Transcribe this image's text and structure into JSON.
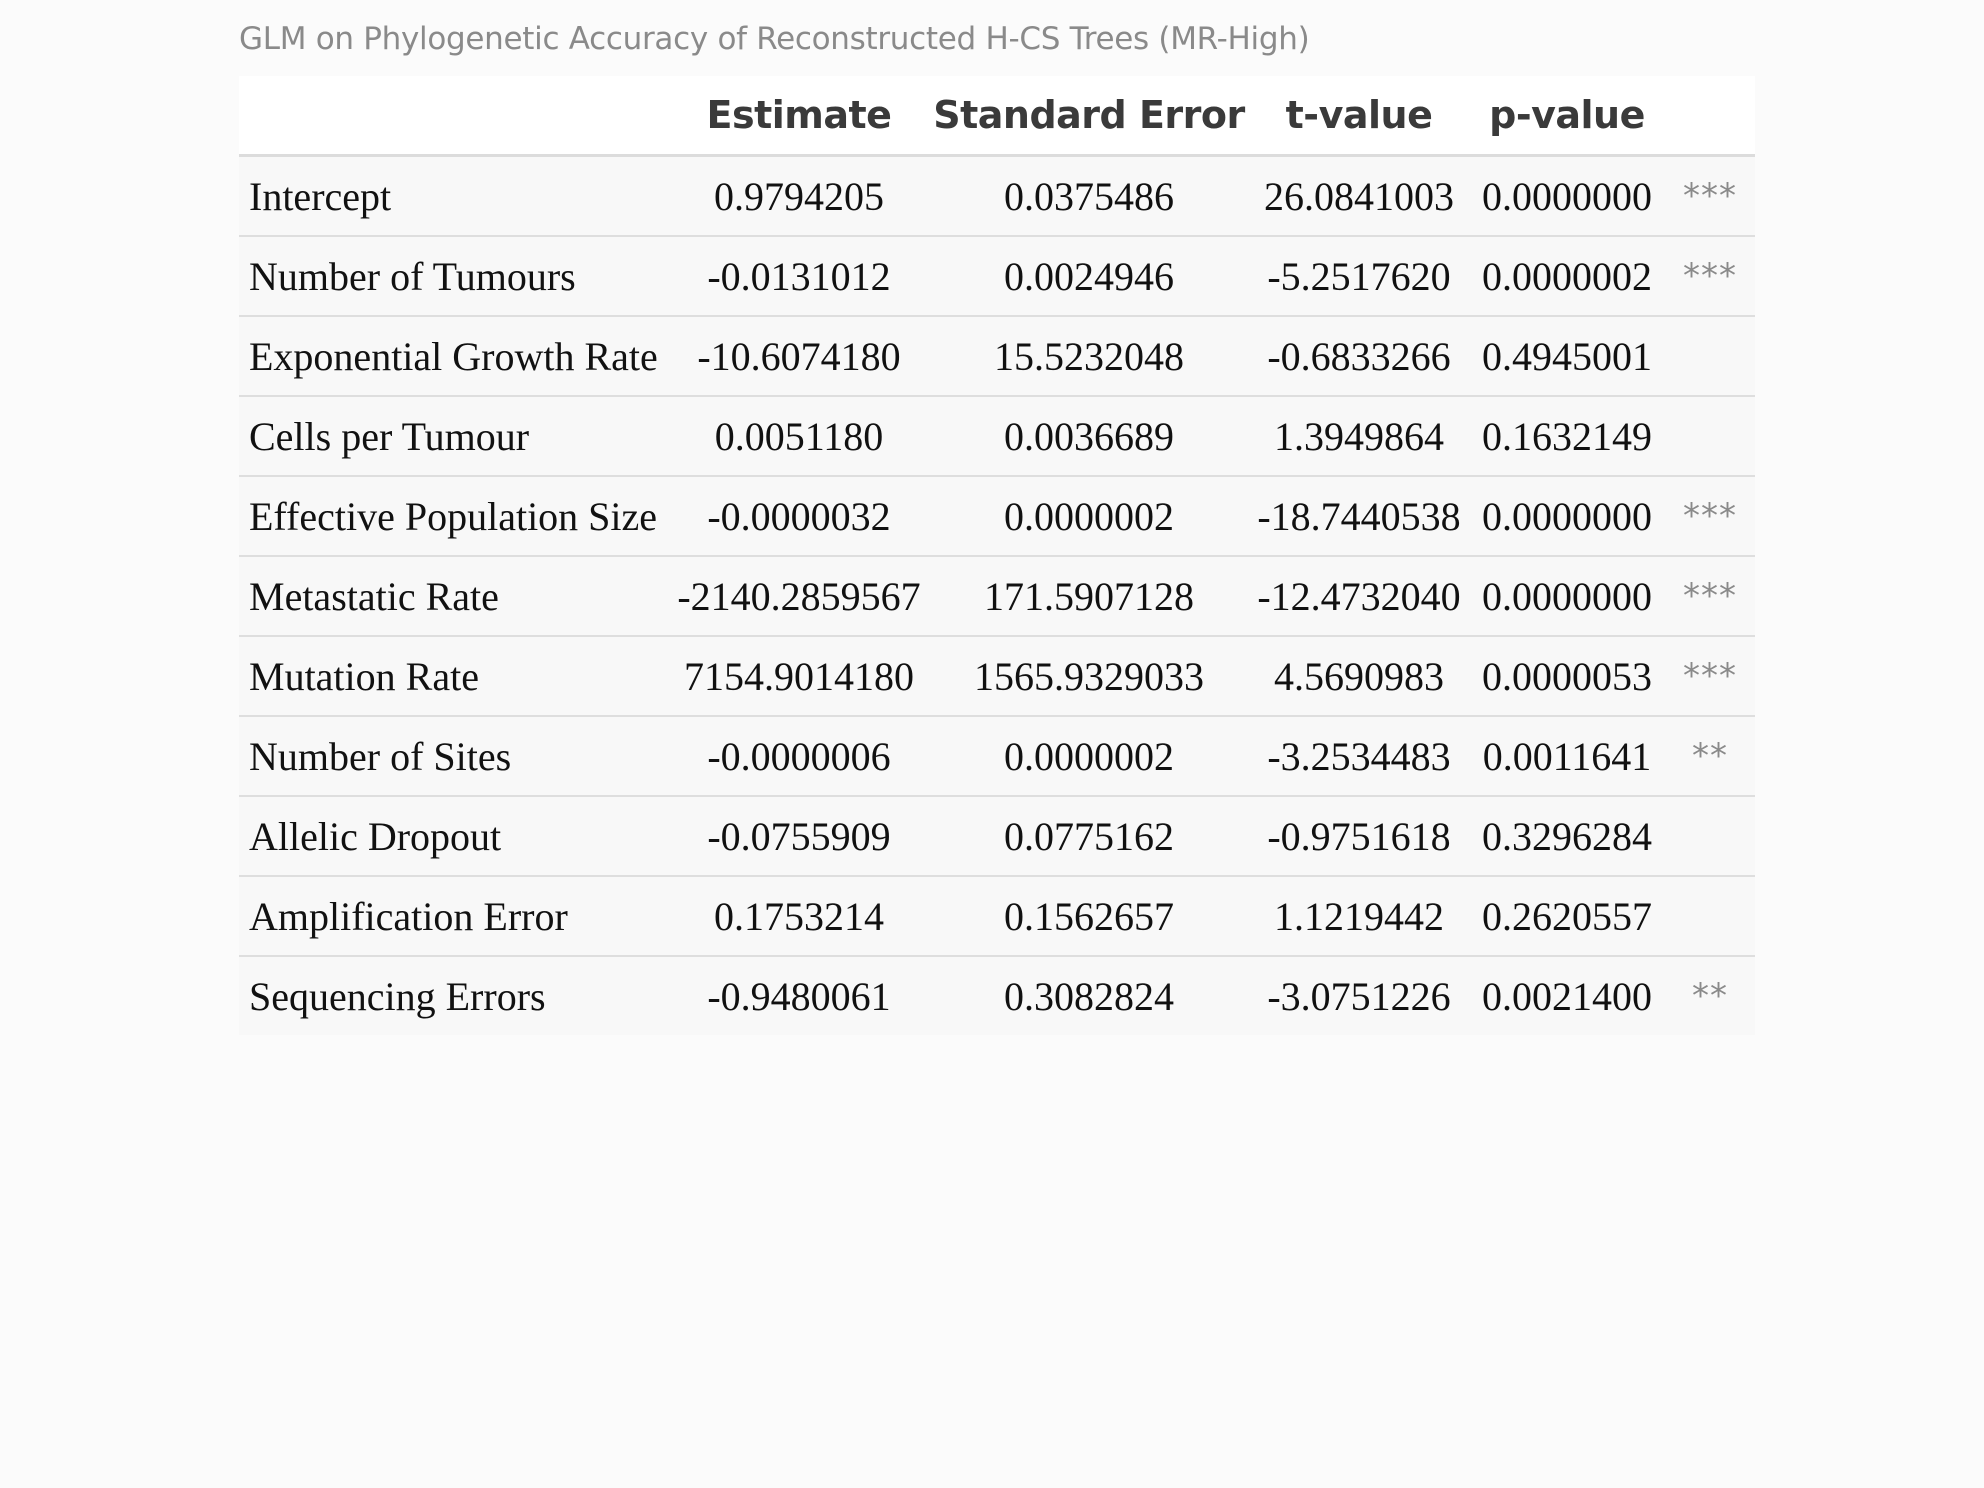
{
  "caption": "GLM on Phylogenetic Accuracy of Reconstructed H-CS Trees (MR-High)",
  "columns": [
    "",
    "Estimate",
    "Standard Error",
    "t-value",
    "p-value",
    ""
  ],
  "rows": [
    {
      "name": "Intercept",
      "estimate": "0.9794205",
      "std_error": "0.0375486",
      "t_value": "26.0841003",
      "p_value": "0.0000000",
      "sig": "***"
    },
    {
      "name": "Number of Tumours",
      "estimate": "-0.0131012",
      "std_error": "0.0024946",
      "t_value": "-5.2517620",
      "p_value": "0.0000002",
      "sig": "***"
    },
    {
      "name": "Exponential Growth Rate",
      "estimate": "-10.6074180",
      "std_error": "15.5232048",
      "t_value": "-0.6833266",
      "p_value": "0.4945001",
      "sig": ""
    },
    {
      "name": "Cells per Tumour",
      "estimate": "0.0051180",
      "std_error": "0.0036689",
      "t_value": "1.3949864",
      "p_value": "0.1632149",
      "sig": ""
    },
    {
      "name": "Effective Population Size",
      "estimate": "-0.0000032",
      "std_error": "0.0000002",
      "t_value": "-18.7440538",
      "p_value": "0.0000000",
      "sig": "***"
    },
    {
      "name": "Metastatic Rate",
      "estimate": "-2140.2859567",
      "std_error": "171.5907128",
      "t_value": "-12.4732040",
      "p_value": "0.0000000",
      "sig": "***"
    },
    {
      "name": "Mutation Rate",
      "estimate": "7154.9014180",
      "std_error": "1565.9329033",
      "t_value": "4.5690983",
      "p_value": "0.0000053",
      "sig": "***"
    },
    {
      "name": "Number of Sites",
      "estimate": "-0.0000006",
      "std_error": "0.0000002",
      "t_value": "-3.2534483",
      "p_value": "0.0011641",
      "sig": "**"
    },
    {
      "name": "Allelic Dropout",
      "estimate": "-0.0755909",
      "std_error": "0.0775162",
      "t_value": "-0.9751618",
      "p_value": "0.3296284",
      "sig": ""
    },
    {
      "name": "Amplification Error",
      "estimate": "0.1753214",
      "std_error": "0.1562657",
      "t_value": "1.1219442",
      "p_value": "0.2620557",
      "sig": ""
    },
    {
      "name": "Sequencing Errors",
      "estimate": "-0.9480061",
      "std_error": "0.3082824",
      "t_value": "-3.0751226",
      "p_value": "0.0021400",
      "sig": "**"
    }
  ]
}
